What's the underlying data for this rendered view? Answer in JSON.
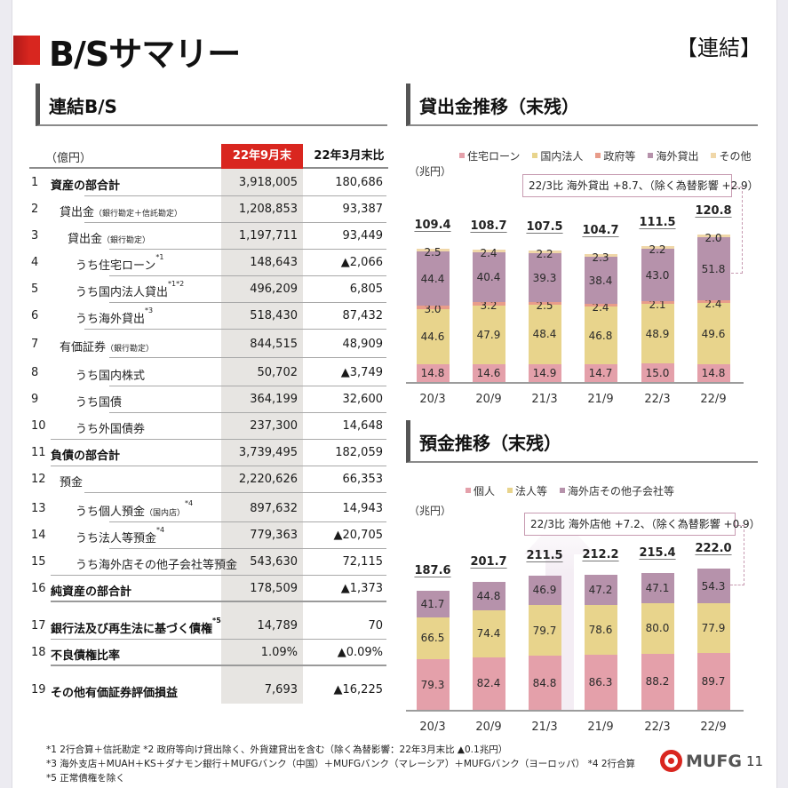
{
  "page": {
    "title": "B/Sサマリー",
    "scope": "【連結】",
    "page_number": "11",
    "logo_text": "MUFG"
  },
  "bs": {
    "section_title": "連結B/S",
    "unit": "（億円）",
    "col_current": "22年9月末",
    "col_compare": "22年3月末比",
    "rows": [
      {
        "no": "1",
        "label": "資産の部合計",
        "note": "",
        "sup": "",
        "current": "3,918,005",
        "change": "180,686"
      },
      {
        "no": "2",
        "label": "貸出金",
        "note": "（銀行勘定＋信託勘定）",
        "sup": "",
        "current": "1,208,853",
        "change": "93,387"
      },
      {
        "no": "3",
        "label": "貸出金",
        "note": "（銀行勘定）",
        "sup": "",
        "current": "1,197,711",
        "change": "93,449"
      },
      {
        "no": "4",
        "label": "うち住宅ローン",
        "note": "",
        "sup": "*1",
        "current": "148,643",
        "change": "▲2,066"
      },
      {
        "no": "5",
        "label": "うち国内法人貸出",
        "note": "",
        "sup": "*1*2",
        "current": "496,209",
        "change": "6,805"
      },
      {
        "no": "6",
        "label": "うち海外貸出",
        "note": "",
        "sup": "*3",
        "current": "518,430",
        "change": "87,432"
      },
      {
        "no": "7",
        "label": "有価証券",
        "note": "（銀行勘定）",
        "sup": "",
        "current": "844,515",
        "change": "48,909"
      },
      {
        "no": "8",
        "label": "うち国内株式",
        "note": "",
        "sup": "",
        "current": "50,702",
        "change": "▲3,749"
      },
      {
        "no": "9",
        "label": "うち国債",
        "note": "",
        "sup": "",
        "current": "364,199",
        "change": "32,600"
      },
      {
        "no": "10",
        "label": "うち外国債券",
        "note": "",
        "sup": "",
        "current": "237,300",
        "change": "14,648"
      },
      {
        "no": "11",
        "label": "負債の部合計",
        "note": "",
        "sup": "",
        "current": "3,739,495",
        "change": "182,059"
      },
      {
        "no": "12",
        "label": "預金",
        "note": "",
        "sup": "",
        "current": "2,220,626",
        "change": "66,353"
      },
      {
        "no": "13",
        "label": "うち個人預金",
        "note": "（国内店）",
        "sup": "*4",
        "current": "897,632",
        "change": "14,943"
      },
      {
        "no": "14",
        "label": "うち法人等預金",
        "note": "",
        "sup": "*4",
        "current": "779,363",
        "change": "▲20,705"
      },
      {
        "no": "15",
        "label": "うち海外店その他子会社等預金",
        "note": "",
        "sup": "",
        "current": "543,630",
        "change": "72,115"
      },
      {
        "no": "16",
        "label": "純資産の部合計",
        "note": "",
        "sup": "",
        "current": "178,509",
        "change": "▲1,373"
      },
      {
        "no": "17",
        "label": "銀行法及び再生法に基づく債権",
        "note": "",
        "sup": "*5",
        "current": "14,789",
        "change": "70"
      },
      {
        "no": "18",
        "label": "不良債権比率",
        "note": "",
        "sup": "",
        "current": "1.09%",
        "change": "▲0.09%"
      },
      {
        "no": "19",
        "label": "その他有価証券評価損益",
        "note": "",
        "sup": "",
        "current": "7,693",
        "change": "▲16,225"
      }
    ]
  },
  "loans": {
    "section_title": "貸出金推移（末残）",
    "unit": "（兆円）",
    "callout": "22/3比 海外貸出 +8.7、（除く為替影響 +2.9）"
  },
  "deposits": {
    "section_title": "預金推移（末残）",
    "unit": "（兆円）",
    "callout": "22/3比 海外店他 +7.2、（除く為替影響 +0.9）"
  },
  "chart_data": [
    {
      "type": "bar",
      "stacked": true,
      "title": "貸出金推移（末残）",
      "ylabel": "（兆円）",
      "categories": [
        "20/3",
        "20/9",
        "21/3",
        "21/9",
        "22/3",
        "22/9"
      ],
      "series": [
        {
          "name": "住宅ローン",
          "color": "#e4a0aa",
          "values": [
            14.8,
            14.6,
            14.9,
            14.7,
            15.0,
            14.8
          ]
        },
        {
          "name": "国内法人",
          "color": "#e8d48c",
          "values": [
            44.6,
            47.9,
            48.4,
            46.8,
            48.9,
            49.6
          ]
        },
        {
          "name": "政府等",
          "color": "#e89c8a",
          "values": [
            3.0,
            3.2,
            2.5,
            2.4,
            2.1,
            2.4
          ]
        },
        {
          "name": "海外貸出",
          "color": "#b692ab",
          "values": [
            44.4,
            40.4,
            39.3,
            38.4,
            43.0,
            51.8
          ]
        },
        {
          "name": "その他",
          "color": "#f0d7a8",
          "values": [
            2.5,
            2.4,
            2.2,
            2.3,
            2.2,
            2.0
          ]
        }
      ],
      "totals": [
        "109.4",
        "108.7",
        "107.5",
        "104.7",
        "111.5",
        "120.8"
      ],
      "annotations": [
        "22/3比 海外貸出 +8.7、（除く為替影響 +2.9）"
      ]
    },
    {
      "type": "bar",
      "stacked": true,
      "title": "預金推移（末残）",
      "ylabel": "（兆円）",
      "categories": [
        "20/3",
        "20/9",
        "21/3",
        "21/9",
        "22/3",
        "22/9"
      ],
      "series": [
        {
          "name": "個人",
          "color": "#e4a0aa",
          "values": [
            79.3,
            82.4,
            84.8,
            86.3,
            88.2,
            89.7
          ]
        },
        {
          "name": "法人等",
          "color": "#e8d48c",
          "values": [
            66.5,
            74.4,
            79.7,
            78.6,
            80.0,
            77.9
          ]
        },
        {
          "name": "海外店その他子会社等",
          "color": "#b692ab",
          "values": [
            41.7,
            44.8,
            46.9,
            47.2,
            47.1,
            54.3
          ]
        }
      ],
      "totals": [
        "187.6",
        "201.7",
        "211.5",
        "212.2",
        "215.4",
        "222.0"
      ],
      "annotations": [
        "22/3比 海外店他 +7.2、（除く為替影響 +0.9）"
      ]
    }
  ],
  "footnotes": [
    "*1  2行合算＋信託勘定   *2  政府等向け貸出除く、外貨建貸出を含む（除く為替影響：22年3月末比 ▲0.1兆円）",
    "*3  海外支店＋MUAH＋KS＋ダナモン銀行＋MUFGバンク（中国）＋MUFGバンク（マレーシア）＋MUFGバンク（ヨーロッパ）   *4  2行合算",
    "*5  正常債権を除く"
  ]
}
